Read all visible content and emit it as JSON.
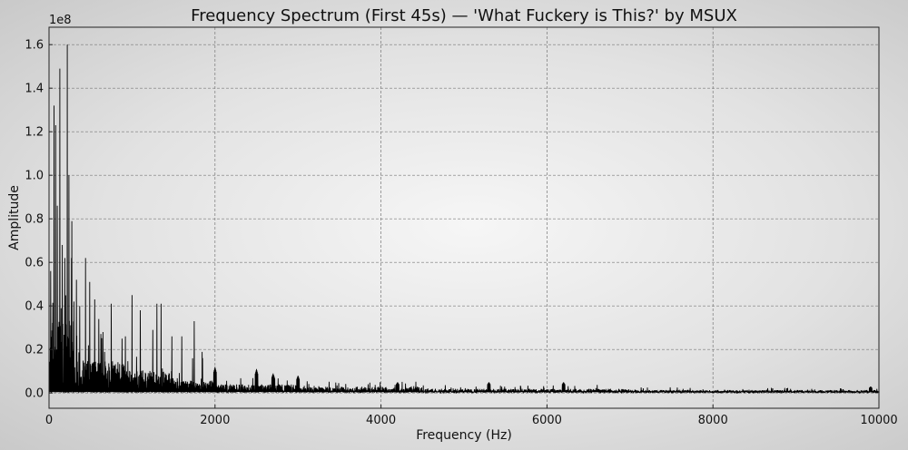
{
  "chart_data": {
    "type": "line",
    "title": "Frequency Spectrum (First 45s) — 'What Fuckery is This?' by MSUX",
    "xlabel": "Frequency (Hz)",
    "ylabel": "Amplitude",
    "y_offset_text": "1e8",
    "xlim": [
      0,
      10000
    ],
    "ylim": [
      -0.07,
      1.68
    ],
    "x_ticks": [
      0,
      2000,
      4000,
      6000,
      8000,
      10000
    ],
    "x_tick_labels": [
      "0",
      "2000",
      "4000",
      "6000",
      "8000",
      "10000"
    ],
    "y_ticks": [
      0.0,
      0.2,
      0.4,
      0.6,
      0.8,
      1.0,
      1.2,
      1.4,
      1.6
    ],
    "y_tick_labels": [
      "0.0",
      "0.2",
      "0.4",
      "0.6",
      "0.8",
      "1.0",
      "1.2",
      "1.4",
      "1.6"
    ],
    "grid": true,
    "series": [
      {
        "color": "#000000",
        "peaks": [
          {
            "x": 20,
            "y": 0.56
          },
          {
            "x": 60,
            "y": 1.32
          },
          {
            "x": 80,
            "y": 1.23
          },
          {
            "x": 100,
            "y": 0.86
          },
          {
            "x": 130,
            "y": 1.49
          },
          {
            "x": 160,
            "y": 0.68
          },
          {
            "x": 190,
            "y": 0.62
          },
          {
            "x": 220,
            "y": 1.6
          },
          {
            "x": 240,
            "y": 1.0
          },
          {
            "x": 270,
            "y": 0.62
          },
          {
            "x": 300,
            "y": 0.42
          },
          {
            "x": 330,
            "y": 0.52
          },
          {
            "x": 370,
            "y": 0.4
          },
          {
            "x": 440,
            "y": 0.62
          },
          {
            "x": 490,
            "y": 0.51
          },
          {
            "x": 550,
            "y": 0.43
          },
          {
            "x": 600,
            "y": 0.34
          },
          {
            "x": 650,
            "y": 0.28
          },
          {
            "x": 750,
            "y": 0.41
          },
          {
            "x": 880,
            "y": 0.25
          },
          {
            "x": 920,
            "y": 0.26
          },
          {
            "x": 1000,
            "y": 0.45
          },
          {
            "x": 1100,
            "y": 0.38
          },
          {
            "x": 1250,
            "y": 0.29
          },
          {
            "x": 1300,
            "y": 0.41
          },
          {
            "x": 1350,
            "y": 0.41
          },
          {
            "x": 1480,
            "y": 0.26
          },
          {
            "x": 1600,
            "y": 0.26
          },
          {
            "x": 1750,
            "y": 0.33
          },
          {
            "x": 1850,
            "y": 0.16
          },
          {
            "x": 2000,
            "y": 0.12
          },
          {
            "x": 2500,
            "y": 0.11
          },
          {
            "x": 2700,
            "y": 0.09
          },
          {
            "x": 3000,
            "y": 0.08
          },
          {
            "x": 4200,
            "y": 0.05
          },
          {
            "x": 5300,
            "y": 0.05
          },
          {
            "x": 6200,
            "y": 0.05
          },
          {
            "x": 9900,
            "y": 0.03
          }
        ]
      }
    ]
  }
}
